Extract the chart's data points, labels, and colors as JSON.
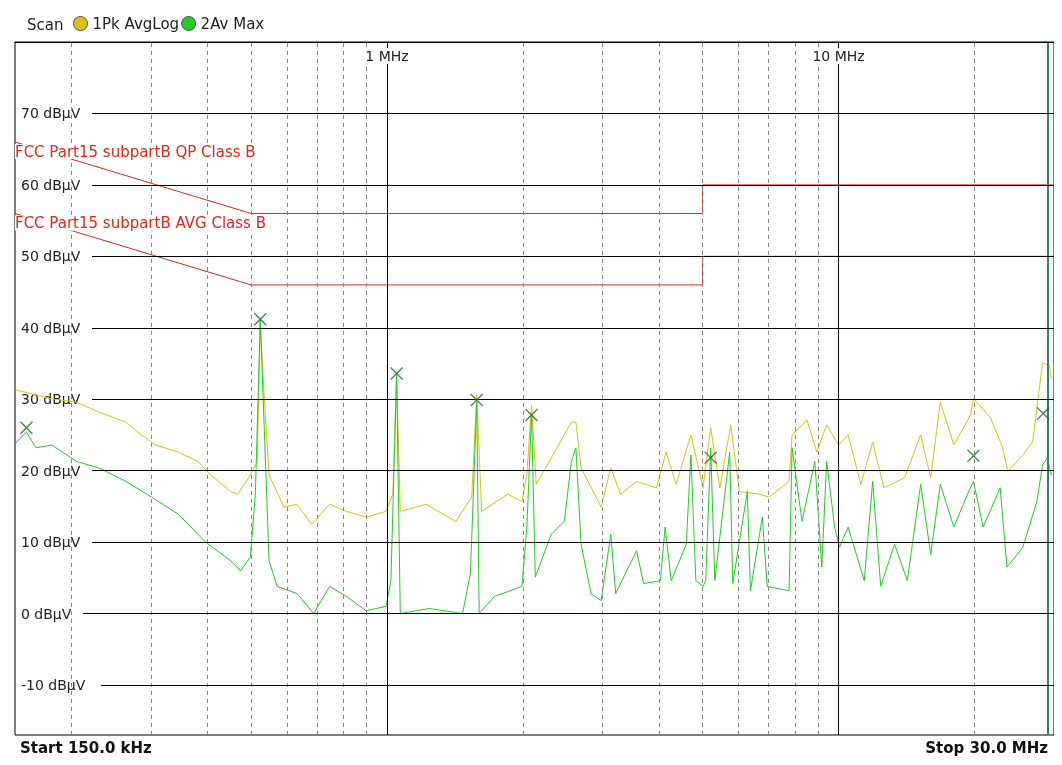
{
  "chart_data": {
    "type": "line",
    "title": "Scan",
    "log": "x",
    "xlim": [
      0.15,
      30
    ],
    "ylim": [
      -17,
      80
    ],
    "xticks": [
      {
        "value": 0.2,
        "label": null
      },
      {
        "value": 0.3,
        "label": null
      },
      {
        "value": 0.4,
        "label": null
      },
      {
        "value": 0.5,
        "label": null
      },
      {
        "value": 0.6,
        "label": null
      },
      {
        "value": 0.7,
        "label": null
      },
      {
        "value": 0.8,
        "label": null
      },
      {
        "value": 0.9,
        "label": null
      },
      {
        "value": 1,
        "label": "1 MHz"
      },
      {
        "value": 2,
        "label": null
      },
      {
        "value": 3,
        "label": null
      },
      {
        "value": 4,
        "label": null
      },
      {
        "value": 5,
        "label": null
      },
      {
        "value": 6,
        "label": null
      },
      {
        "value": 7,
        "label": null
      },
      {
        "value": 8,
        "label": null
      },
      {
        "value": 9,
        "label": null
      },
      {
        "value": 10,
        "label": "10 MHz"
      },
      {
        "value": 20,
        "label": null
      }
    ],
    "yticks": [
      {
        "value": -10,
        "label": "-10 dBµV"
      },
      {
        "value": 0,
        "label": "0 dBµV"
      },
      {
        "value": 10,
        "label": "10 dBµV"
      },
      {
        "value": 20,
        "label": "20 dBµV"
      },
      {
        "value": 30,
        "label": "30 dBµV"
      },
      {
        "value": 40,
        "label": "40 dBµV"
      },
      {
        "value": 50,
        "label": "50 dBµV"
      },
      {
        "value": 60,
        "label": "60 dBµV"
      },
      {
        "value": 70,
        "label": "70 dBµV"
      }
    ],
    "grid": true,
    "legend": "top left",
    "marker": "none",
    "series": [
      {
        "name": "1Pk AvgLog",
        "color": "#d8c414",
        "x": [
          0.151,
          0.179,
          0.205,
          0.23,
          0.264,
          0.286,
          0.307,
          0.345,
          0.381,
          0.407,
          0.45,
          0.467,
          0.498,
          0.516,
          0.524,
          0.535,
          0.548,
          0.591,
          0.632,
          0.681,
          0.746,
          0.813,
          0.855,
          0.899,
          0.995,
          1.03,
          1.05,
          1.07,
          1.22,
          1.42,
          1.54,
          1.58,
          1.62,
          1.85,
          1.99,
          2.04,
          2.09,
          2.14,
          2.38,
          2.56,
          2.62,
          2.69,
          2.98,
          3.13,
          3.29,
          3.57,
          3.95,
          4.15,
          4.37,
          4.71,
          5.01,
          5.21,
          5.46,
          5.77,
          6.03,
          6.68,
          7.02,
          7.77,
          7.89,
          8.51,
          8.95,
          9.41,
          10,
          10.5,
          11.2,
          11.9,
          12.6,
          14,
          15.2,
          16,
          16.8,
          18,
          19.6,
          19.9,
          21.7,
          23.1,
          23.7,
          25.6,
          26.9,
          28.3,
          29.3,
          29.6
        ],
        "values": [
          31.3,
          30.1,
          29.6,
          28.2,
          26.8,
          25,
          23.6,
          22.6,
          21.3,
          19.4,
          17.1,
          16.7,
          19.4,
          21.3,
          40.7,
          30,
          19.4,
          14.9,
          15.3,
          12.5,
          15.3,
          14.3,
          13.9,
          13.5,
          14.3,
          16.7,
          33.8,
          14.3,
          15.3,
          12.9,
          16.3,
          30.6,
          14.3,
          16.7,
          15.7,
          19.4,
          29.2,
          18.1,
          23.2,
          26.8,
          26.8,
          20.4,
          14.9,
          20.4,
          16.7,
          18.5,
          17.6,
          22.6,
          18.1,
          25,
          17.6,
          26,
          17.6,
          26.4,
          17.1,
          16.7,
          16.3,
          18.5,
          25,
          27.1,
          22.6,
          26.4,
          23.6,
          25,
          18.1,
          24,
          17.6,
          19,
          25,
          19,
          29.6,
          23.6,
          27.8,
          30.1,
          27.4,
          23.2,
          19.9,
          22.2,
          24,
          35.1,
          34.7,
          32.9
        ]
      },
      {
        "name": "2Av Max",
        "color": "#22cc22",
        "x": [
          0.151,
          0.159,
          0.167,
          0.181,
          0.205,
          0.23,
          0.264,
          0.301,
          0.345,
          0.395,
          0.45,
          0.474,
          0.498,
          0.511,
          0.524,
          0.538,
          0.548,
          0.571,
          0.632,
          0.688,
          0.746,
          0.813,
          0.855,
          0.899,
          0.995,
          1.02,
          1.05,
          1.07,
          1.24,
          1.47,
          1.53,
          1.58,
          1.6,
          1.73,
          1.99,
          2.04,
          2.09,
          2.13,
          2.31,
          2.47,
          2.56,
          2.62,
          2.69,
          2.83,
          2.98,
          3.13,
          3.21,
          3.57,
          3.7,
          4.03,
          4.13,
          4.26,
          4.6,
          4.71,
          4.83,
          5.01,
          5.08,
          5.21,
          5.32,
          5.74,
          5.83,
          6.28,
          6.38,
          6.78,
          6.95,
          7.77,
          7.89,
          8.3,
          8.86,
          9.18,
          9.41,
          9.8,
          10.05,
          10.5,
          11.4,
          11.9,
          12.4,
          13.3,
          14.2,
          15.2,
          16,
          16.8,
          18,
          19.3,
          19.9,
          20.9,
          22.8,
          23.6,
          25.6,
          27.5,
          28.3,
          29,
          29.6
        ],
        "values": [
          24,
          25.4,
          23.2,
          23.6,
          21.3,
          20.4,
          18.5,
          16.3,
          13.9,
          10.1,
          7.4,
          6,
          7.9,
          16.7,
          41.3,
          21.3,
          7.4,
          3.8,
          2.8,
          0,
          3.8,
          2.4,
          1.4,
          0.4,
          1,
          4.6,
          33.3,
          0,
          0.7,
          0,
          5.6,
          29.6,
          0,
          2.4,
          3.8,
          12.1,
          27.8,
          5.1,
          11.1,
          12.9,
          21.3,
          23.2,
          9.7,
          2.8,
          1.8,
          11.1,
          2.8,
          8.8,
          4.2,
          4.6,
          12.1,
          4.6,
          9.7,
          22.2,
          4.6,
          3.8,
          4.6,
          23.2,
          4.6,
          22.6,
          4.2,
          17.1,
          3.2,
          13.5,
          3.8,
          3.2,
          23.2,
          12.9,
          21.3,
          6.5,
          21.3,
          12.1,
          9.3,
          12.1,
          4.6,
          18.5,
          3.8,
          9.7,
          4.6,
          18.1,
          8.3,
          18.1,
          12.1,
          16.7,
          18.5,
          12.1,
          17.6,
          6.5,
          9.3,
          15.7,
          20.8,
          21.8,
          19.4
        ]
      },
      {
        "color": "#e02818",
        "x": [
          0.15,
          0.5,
          5,
          5,
          30
        ],
        "values": [
          66,
          56,
          56,
          60,
          60
        ]
      },
      {
        "color": "#e02818",
        "x": [
          0.15,
          0.5,
          5,
          5,
          30
        ],
        "values": [
          56,
          46,
          46,
          50,
          50
        ]
      },
      {
        "type": "scatter",
        "marker": "cross",
        "color": "#1f6b2a",
        "x": [
          0.524,
          1.05,
          1.58
        ],
        "values": [
          41.2,
          33.6,
          29.9
        ]
      },
      {
        "type": "scatter",
        "marker": "cross",
        "color": "#1f6b2a",
        "x": [
          0.159,
          2.09,
          5.21,
          19.9,
          28.4
        ],
        "values": [
          26,
          27.8,
          21.8,
          22.1,
          28
        ]
      }
    ],
    "ref_lines": [
      {
        "axis": "x",
        "value": 29,
        "color": "#2f7f7f"
      }
    ],
    "annotations": [
      {
        "text": "FCC Part15 subpartB QP Class B",
        "x": 0.15,
        "y": 66
      },
      {
        "text": "FCC Part15 subpartB AVG Class B",
        "x": 0.15,
        "y": 56
      },
      "Start 150.0 kHz",
      "Stop 30.0 MHz"
    ]
  }
}
